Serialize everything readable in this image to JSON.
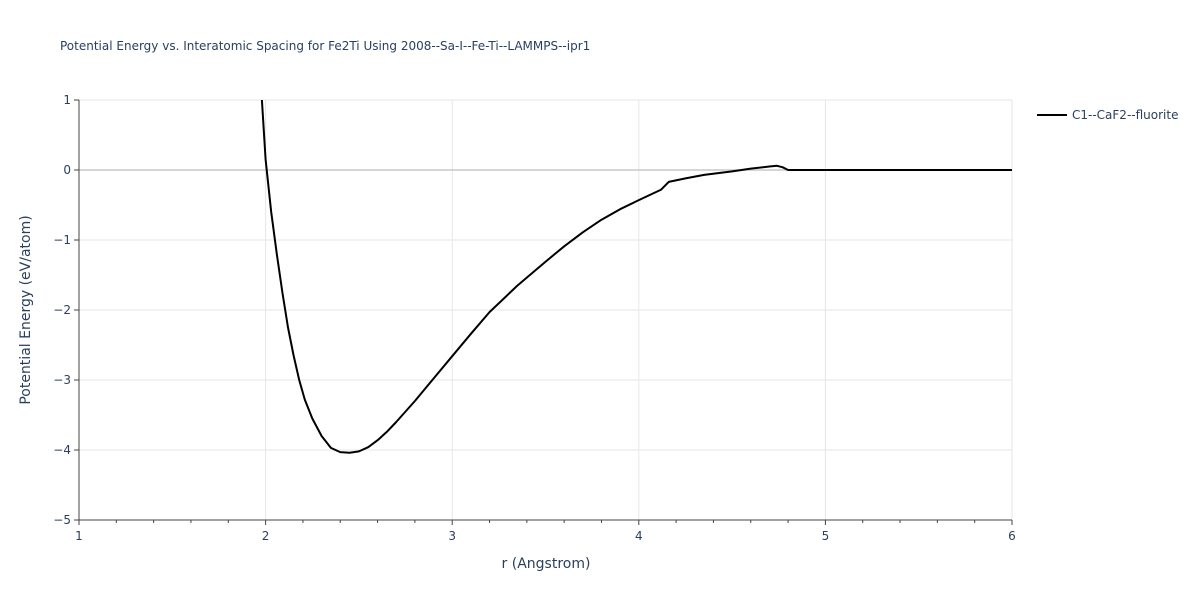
{
  "chart_data": {
    "type": "line",
    "title": "Potential Energy vs. Interatomic Spacing for Fe2Ti Using 2008--Sa-I--Fe-Ti--LAMMPS--ipr1",
    "xlabel": "r (Angstrom)",
    "ylabel": "Potential Energy (eV/atom)",
    "xlim": [
      1,
      6
    ],
    "ylim": [
      -5,
      1
    ],
    "xticks": [
      1,
      2,
      3,
      4,
      5,
      6
    ],
    "yticks": [
      1,
      0,
      -1,
      -2,
      -3,
      -4,
      -5
    ],
    "ytick_labels": [
      "1",
      "0",
      "−1",
      "−2",
      "−3",
      "−4",
      "−5"
    ],
    "grid": true,
    "legend_position": "top-right",
    "series": [
      {
        "name": "C1--CaF2--fluorite",
        "color": "#000000",
        "x": [
          1.98,
          2.0,
          2.03,
          2.06,
          2.09,
          2.12,
          2.15,
          2.18,
          2.21,
          2.25,
          2.3,
          2.35,
          2.4,
          2.45,
          2.5,
          2.55,
          2.6,
          2.65,
          2.7,
          2.8,
          2.9,
          3.0,
          3.1,
          3.2,
          3.35,
          3.5,
          3.6,
          3.7,
          3.8,
          3.9,
          4.0,
          4.08,
          4.12,
          4.16,
          4.25,
          4.35,
          4.5,
          4.6,
          4.7,
          4.74,
          4.77,
          4.8,
          4.9,
          5.0,
          5.5,
          6.0
        ],
        "y": [
          1.0,
          0.15,
          -0.6,
          -1.2,
          -1.75,
          -2.25,
          -2.65,
          -3.0,
          -3.28,
          -3.55,
          -3.8,
          -3.97,
          -4.03,
          -4.04,
          -4.02,
          -3.96,
          -3.86,
          -3.74,
          -3.6,
          -3.3,
          -2.98,
          -2.66,
          -2.34,
          -2.03,
          -1.65,
          -1.31,
          -1.09,
          -0.89,
          -0.71,
          -0.56,
          -0.43,
          -0.33,
          -0.28,
          -0.17,
          -0.12,
          -0.07,
          -0.02,
          0.02,
          0.05,
          0.06,
          0.04,
          0.0,
          0.0,
          0.0,
          0.0,
          0.0
        ]
      }
    ]
  }
}
